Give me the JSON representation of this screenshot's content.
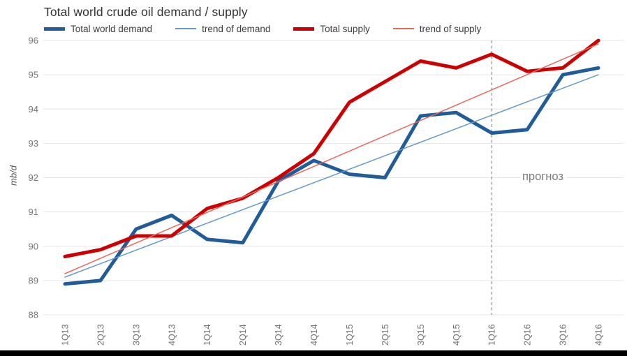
{
  "colors": {
    "demand": "#1f5c99",
    "supply": "#cc0000",
    "trend_demand": "#6699cc",
    "trend_supply": "#e8685c",
    "grid": "#e6e6e6",
    "axis_text": "#757575",
    "title_text": "#333333",
    "forecast_line": "#777777",
    "annotation_text": "#7b7b7b",
    "bottom_bar": "#000000"
  },
  "chart_data": {
    "type": "line",
    "title": "Total world crude oil demand / supply",
    "xlabel": "",
    "ylabel": "mb/d",
    "ylim": [
      88,
      96
    ],
    "yticks": [
      88,
      89,
      90,
      91,
      92,
      93,
      94,
      95,
      96
    ],
    "grid": "horizontal",
    "legend_position": "top",
    "categories": [
      "1Q13",
      "2Q13",
      "3Q13",
      "4Q13",
      "1Q14",
      "2Q14",
      "3Q14",
      "4Q14",
      "1Q15",
      "2Q15",
      "3Q15",
      "4Q15",
      "1Q16",
      "2Q16",
      "3Q16",
      "4Q16"
    ],
    "series": [
      {
        "name": "Total world demand",
        "color_key": "demand",
        "width": 5,
        "trend": false,
        "values": [
          88.9,
          89.0,
          90.5,
          90.9,
          90.2,
          90.1,
          91.9,
          92.5,
          92.1,
          92.0,
          93.8,
          93.9,
          93.3,
          93.4,
          95.0,
          95.2
        ]
      },
      {
        "name": "trend of demand",
        "color_key": "trend_demand",
        "width": 1.5,
        "trend": true,
        "values": [
          89.1,
          95.0
        ]
      },
      {
        "name": "Total supply",
        "color_key": "supply",
        "width": 5,
        "trend": false,
        "values": [
          89.7,
          89.9,
          90.3,
          90.3,
          91.1,
          91.4,
          92.0,
          92.7,
          94.2,
          94.8,
          95.4,
          95.2,
          95.6,
          95.1,
          95.2,
          96.0
        ]
      },
      {
        "name": "trend of supply",
        "color_key": "trend_supply",
        "width": 1.5,
        "trend": true,
        "values": [
          89.2,
          95.9
        ]
      }
    ],
    "legend": [
      {
        "label": "Total world demand",
        "color_key": "demand",
        "thick": true
      },
      {
        "label": "trend of demand",
        "color_key": "trend_demand",
        "thick": false
      },
      {
        "label": "Total supply",
        "color_key": "supply",
        "thick": true
      },
      {
        "label": "trend of supply",
        "color_key": "trend_supply",
        "thick": false
      }
    ],
    "forecast_divider_at": "1Q16",
    "annotation": {
      "text": "прогноз",
      "near_category": "2Q16",
      "at_value": 92
    }
  }
}
